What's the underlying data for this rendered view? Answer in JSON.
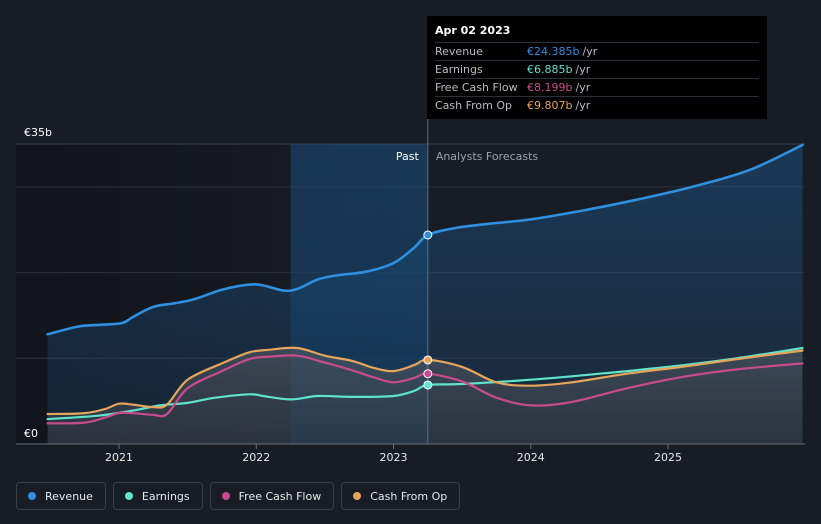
{
  "chart_data": {
    "type": "line",
    "title": "",
    "currency": "€",
    "y_axis": {
      "top_label": "€35b",
      "bottom_label": "€0",
      "ylim": [
        0,
        35
      ]
    },
    "x_axis": {
      "tick_labels": [
        "2021",
        "2022",
        "2023",
        "2024",
        "2025"
      ],
      "tick_years": [
        2021,
        2022,
        2023,
        2024,
        2025
      ],
      "xlim": [
        2020.48,
        2025.98
      ]
    },
    "divider": {
      "year": 2023.25,
      "past_label": "Past",
      "forecast_label": "Analysts Forecasts"
    },
    "series": [
      {
        "name": "Revenue",
        "color": "#2f8fe0",
        "x": [
          2020.48,
          2020.7,
          2020.85,
          2021.02,
          2021.1,
          2021.25,
          2021.4,
          2021.55,
          2021.75,
          2021.95,
          2022.05,
          2022.2,
          2022.3,
          2022.45,
          2022.6,
          2022.8,
          2023.0,
          2023.15,
          2023.25,
          2023.45,
          2023.7,
          2024.0,
          2024.4,
          2024.8,
          2025.2,
          2025.6,
          2025.98
        ],
        "values": [
          12.8,
          13.7,
          13.9,
          14.1,
          14.8,
          16.0,
          16.4,
          16.9,
          18.0,
          18.6,
          18.5,
          17.9,
          18.1,
          19.2,
          19.7,
          20.1,
          21.1,
          22.9,
          24.385,
          25.2,
          25.7,
          26.2,
          27.3,
          28.6,
          30.1,
          32.0,
          34.9
        ]
      },
      {
        "name": "Earnings",
        "color": "#5fe3cd",
        "x": [
          2020.48,
          2020.85,
          2021.1,
          2021.3,
          2021.5,
          2021.7,
          2021.95,
          2022.05,
          2022.25,
          2022.45,
          2022.7,
          2023.0,
          2023.15,
          2023.25,
          2023.5,
          2024.0,
          2024.5,
          2025.0,
          2025.5,
          2025.98
        ],
        "values": [
          2.9,
          3.3,
          3.9,
          4.5,
          4.8,
          5.4,
          5.8,
          5.6,
          5.2,
          5.6,
          5.5,
          5.6,
          6.2,
          6.885,
          7.0,
          7.5,
          8.2,
          9.0,
          10.0,
          11.2
        ]
      },
      {
        "name": "Free Cash Flow",
        "color": "#c84b8d",
        "x": [
          2020.48,
          2020.75,
          2020.9,
          2021.0,
          2021.1,
          2021.25,
          2021.35,
          2021.5,
          2021.75,
          2021.95,
          2022.1,
          2022.3,
          2022.5,
          2022.7,
          2022.85,
          2023.0,
          2023.15,
          2023.25,
          2023.5,
          2023.75,
          2024.0,
          2024.3,
          2024.7,
          2025.1,
          2025.5,
          2025.98
        ],
        "values": [
          2.4,
          2.5,
          3.1,
          3.6,
          3.6,
          3.4,
          3.5,
          6.5,
          8.5,
          9.9,
          10.2,
          10.3,
          9.5,
          8.6,
          7.8,
          7.2,
          7.7,
          8.199,
          7.3,
          5.4,
          4.5,
          4.9,
          6.5,
          7.8,
          8.7,
          9.4
        ]
      },
      {
        "name": "Cash From Op",
        "color": "#e6a55b",
        "x": [
          2020.48,
          2020.75,
          2020.9,
          2021.0,
          2021.1,
          2021.25,
          2021.35,
          2021.5,
          2021.75,
          2021.95,
          2022.1,
          2022.3,
          2022.5,
          2022.7,
          2022.85,
          2023.0,
          2023.15,
          2023.25,
          2023.5,
          2023.75,
          2024.0,
          2024.3,
          2024.7,
          2025.1,
          2025.5,
          2025.98
        ],
        "values": [
          3.5,
          3.6,
          4.1,
          4.7,
          4.6,
          4.3,
          4.6,
          7.5,
          9.4,
          10.7,
          11.0,
          11.2,
          10.3,
          9.7,
          8.9,
          8.5,
          9.2,
          9.807,
          9.0,
          7.2,
          6.8,
          7.2,
          8.2,
          9.0,
          9.9,
          10.9
        ]
      }
    ],
    "highlight_marker_year": 2023.25
  },
  "tooltip": {
    "date": "Apr 02 2023",
    "rows": [
      {
        "label": "Revenue",
        "value": "€24.385b",
        "suffix": "/yr",
        "color": "#2f8fe0"
      },
      {
        "label": "Earnings",
        "value": "€6.885b",
        "suffix": "/yr",
        "color": "#5fe3cd"
      },
      {
        "label": "Free Cash Flow",
        "value": "€8.199b",
        "suffix": "/yr",
        "color": "#c84b8d"
      },
      {
        "label": "Cash From Op",
        "value": "€9.807b",
        "suffix": "/yr",
        "color": "#e6a55b"
      }
    ]
  },
  "legend": [
    {
      "label": "Revenue",
      "color": "#2f8fe0"
    },
    {
      "label": "Earnings",
      "color": "#5fe3cd"
    },
    {
      "label": "Free Cash Flow",
      "color": "#c84b8d"
    },
    {
      "label": "Cash From Op",
      "color": "#e6a55b"
    }
  ]
}
